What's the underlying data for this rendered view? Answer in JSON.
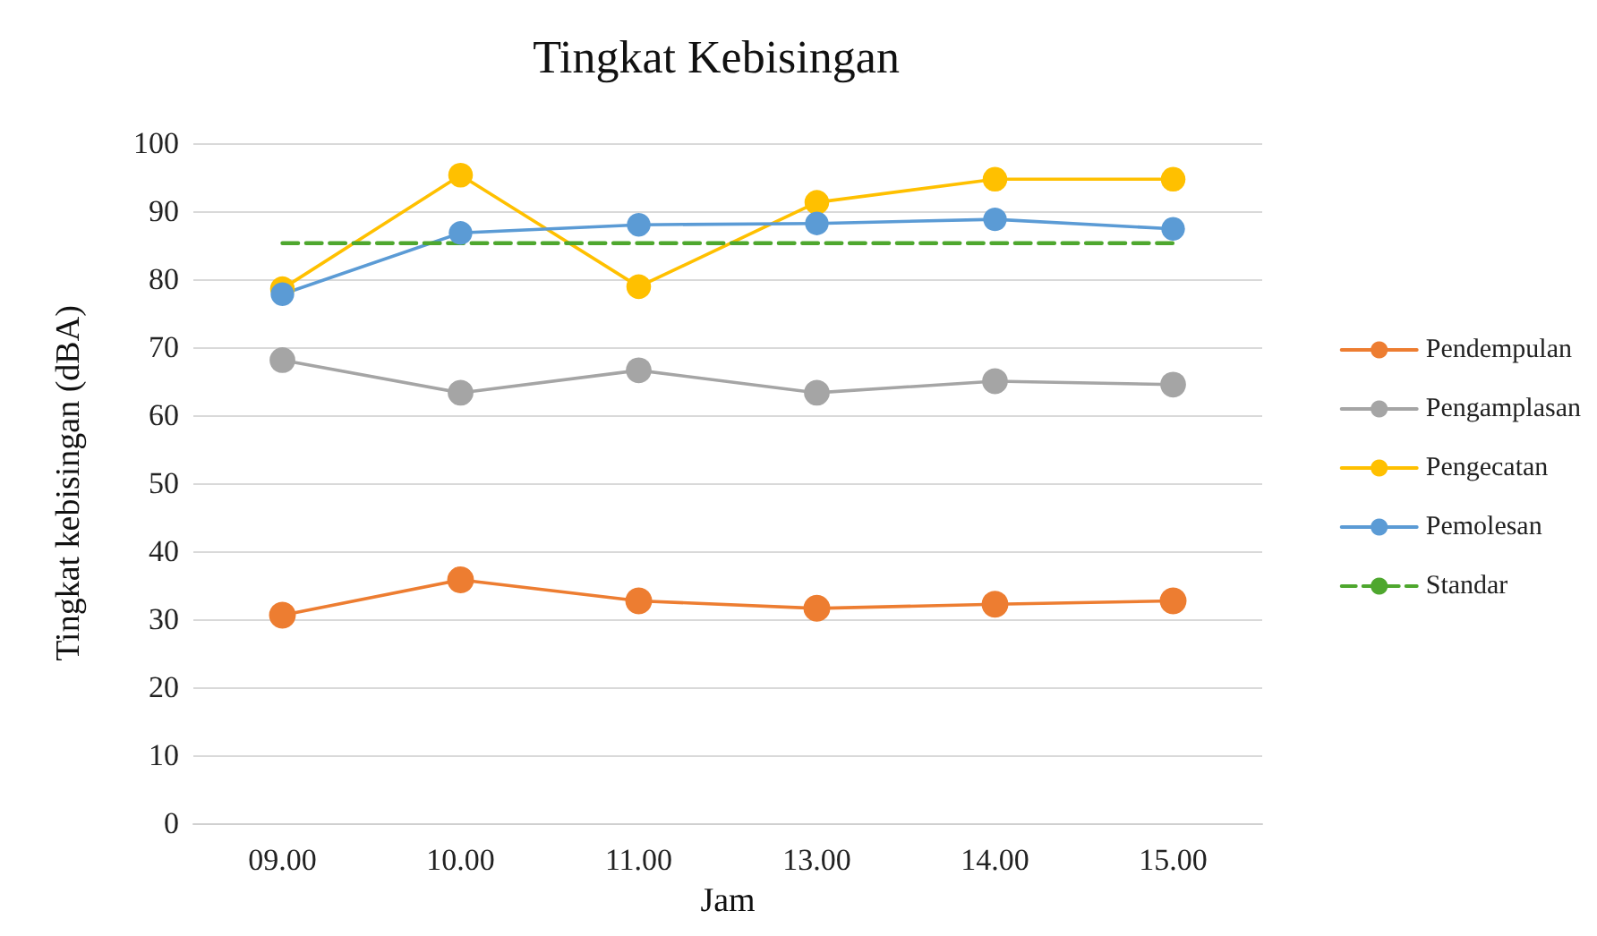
{
  "chart_data": {
    "type": "line",
    "title": "Tingkat Kebisingan",
    "xlabel": "Jam",
    "ylabel": "Tingkat kebisingan (dBA)",
    "categories": [
      "09.00",
      "10.00",
      "11.00",
      "13.00",
      "14.00",
      "15.00"
    ],
    "series": [
      {
        "name": "Pendempulan",
        "color": "#ed7d31",
        "values": [
          30.6,
          35.8,
          32.7,
          31.6,
          32.2,
          32.7
        ]
      },
      {
        "name": "Pengamplasan",
        "color": "#a5a5a5",
        "values": [
          68.1,
          63.3,
          66.6,
          63.3,
          65.0,
          64.5
        ]
      },
      {
        "name": "Pengecatan",
        "color": "#ffc000",
        "values": [
          78.6,
          95.3,
          78.9,
          91.3,
          94.7,
          94.7
        ]
      },
      {
        "name": "Pemolesan",
        "color": "#5b9bd5",
        "values": [
          77.8,
          86.8,
          88.0,
          88.2,
          88.8,
          87.4
        ]
      },
      {
        "name": "Standar",
        "color": "#4ea72e",
        "values": [
          85.3,
          85.3,
          85.3,
          85.3,
          85.3,
          85.3
        ],
        "marker": "none",
        "line_style": "dashed"
      }
    ],
    "ylim": [
      0,
      100
    ],
    "yticks": [
      0,
      10,
      20,
      30,
      40,
      50,
      60,
      70,
      80,
      90,
      100
    ],
    "grid": "y",
    "legend": "right",
    "marker": "circle",
    "line_style": "solid"
  }
}
